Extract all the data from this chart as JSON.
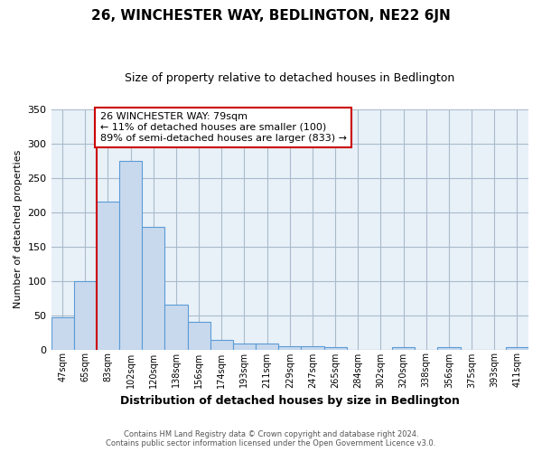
{
  "title": "26, WINCHESTER WAY, BEDLINGTON, NE22 6JN",
  "subtitle": "Size of property relative to detached houses in Bedlington",
  "xlabel": "Distribution of detached houses by size in Bedlington",
  "ylabel": "Number of detached properties",
  "bar_labels": [
    "47sqm",
    "65sqm",
    "83sqm",
    "102sqm",
    "120sqm",
    "138sqm",
    "156sqm",
    "174sqm",
    "193sqm",
    "211sqm",
    "229sqm",
    "247sqm",
    "265sqm",
    "284sqm",
    "302sqm",
    "320sqm",
    "338sqm",
    "356sqm",
    "375sqm",
    "393sqm",
    "411sqm"
  ],
  "bar_heights": [
    47,
    100,
    215,
    275,
    178,
    65,
    40,
    14,
    8,
    8,
    5,
    5,
    3,
    0,
    0,
    3,
    0,
    3,
    0,
    0,
    3
  ],
  "bar_color": "#c8d9ee",
  "bar_edgecolor": "#5b9bd5",
  "ylim": [
    0,
    350
  ],
  "yticks": [
    0,
    50,
    100,
    150,
    200,
    250,
    300,
    350
  ],
  "vline_index": 2,
  "vline_color": "#cc0000",
  "annotation_text": "26 WINCHESTER WAY: 79sqm\n← 11% of detached houses are smaller (100)\n89% of semi-detached houses are larger (833) →",
  "annotation_box_edgecolor": "#cc0000",
  "footer_line1": "Contains HM Land Registry data © Crown copyright and database right 2024.",
  "footer_line2": "Contains public sector information licensed under the Open Government Licence v3.0.",
  "background_color": "#ffffff",
  "grid_color": "#c8d9ee",
  "fig_width": 6.0,
  "fig_height": 5.0,
  "dpi": 100
}
